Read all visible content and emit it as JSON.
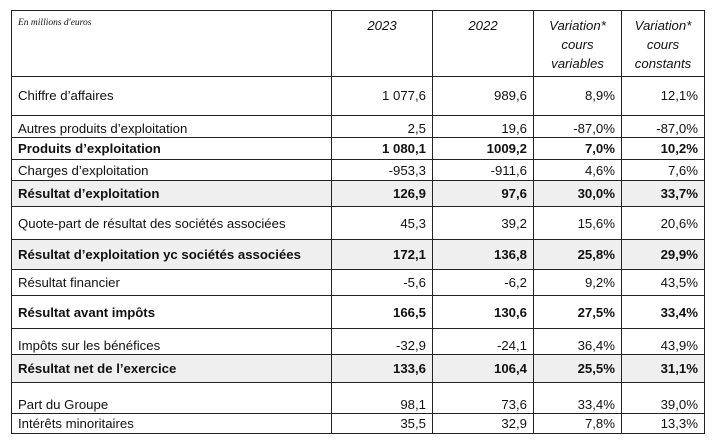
{
  "table": {
    "unit_label": "En millions d'euros",
    "columns": [
      "2023",
      "2022",
      "Variation* cours variables",
      "Variation* cours constants"
    ],
    "rows": [
      {
        "label": "Chiffre d’affaires",
        "values": [
          "1 077,6",
          "989,6",
          "8,9%",
          "12,1%"
        ]
      },
      {
        "label": "Autres produits d’exploitation",
        "values": [
          "2,5",
          "19,6",
          "-87,0%",
          "-87,0%"
        ]
      },
      {
        "label": "Produits d’exploitation",
        "values": [
          "1 080,1",
          "1009,2",
          "7,0%",
          "10,2%"
        ]
      },
      {
        "label": "Charges d’exploitation",
        "values": [
          "-953,3",
          "-911,6",
          "4,6%",
          "7,6%"
        ]
      },
      {
        "label": "Résultat d’exploitation",
        "values": [
          "126,9",
          "97,6",
          "30,0%",
          "33,7%"
        ]
      },
      {
        "label": "Quote-part de résultat des sociétés associées",
        "values": [
          "45,3",
          "39,2",
          "15,6%",
          "20,6%"
        ]
      },
      {
        "label": "Résultat d’exploitation yc sociétés associées",
        "values": [
          "172,1",
          "136,8",
          "25,8%",
          "29,9%"
        ]
      },
      {
        "label": "Résultat financier",
        "values": [
          "-5,6",
          "-6,2",
          "9,2%",
          "43,5%"
        ]
      },
      {
        "label": "Résultat avant impôts",
        "values": [
          "166,5",
          "130,6",
          "27,5%",
          "33,4%"
        ]
      },
      {
        "label": "Impôts sur les bénéfices",
        "values": [
          "-32,9",
          "-24,1",
          "36,4%",
          "43,9%"
        ]
      },
      {
        "label": "Résultat net de l’exercice",
        "values": [
          "133,6",
          "106,4",
          "25,5%",
          "31,1%"
        ]
      },
      {
        "label": "Part du Groupe",
        "values": [
          "98,1",
          "73,6",
          "33,4%",
          "39,0%"
        ]
      },
      {
        "label": "Intérêts minoritaires",
        "values": [
          "35,5",
          "32,9",
          "7,8%",
          "13,3%"
        ]
      }
    ]
  }
}
